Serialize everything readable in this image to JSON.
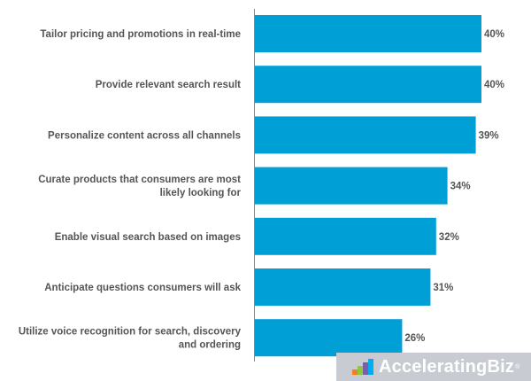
{
  "chart_data": {
    "type": "bar",
    "orientation": "horizontal",
    "categories": [
      [
        "Tailor pricing and promotions in real-time"
      ],
      [
        "Provide relevant search result"
      ],
      [
        "Personalize content across all channels"
      ],
      [
        "Curate products that consumers are most",
        "likely looking for"
      ],
      [
        "Enable visual search based on images"
      ],
      [
        "Anticipate questions consumers will ask"
      ],
      [
        "Utilize voice recognition for search, discovery",
        "and ordering"
      ]
    ],
    "values": [
      40,
      40,
      39,
      34,
      32,
      31,
      26
    ],
    "value_labels": [
      "40%",
      "40%",
      "39%",
      "34%",
      "32%",
      "31%",
      "26%"
    ],
    "bar_color": "#009fd6",
    "title": "",
    "xlabel": "",
    "ylabel": "",
    "xlim": [
      0,
      40
    ],
    "grid": false,
    "legend": "none"
  },
  "watermark": {
    "brand": "AcceleratingBiz",
    "mark": "®",
    "icon_colors": [
      "#f47f20",
      "#8dc63f",
      "#7b5ea7",
      "#00aeef"
    ]
  }
}
